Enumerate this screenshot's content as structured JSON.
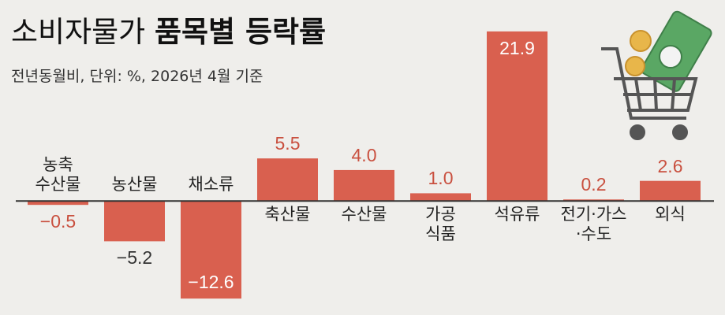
{
  "chart_data": {
    "type": "bar",
    "title": [
      "소비자물가",
      "품목별 등락률"
    ],
    "subtitle": "전년동월비, 단위: %, 2026년 4월 기준",
    "categories": [
      "농축\n수산물",
      "농산물",
      "채소류",
      "축산물",
      "수산물",
      "가공\n식품",
      "석유류",
      "전기·가스\n·수도",
      "외식"
    ],
    "values": [
      -0.5,
      -5.2,
      -12.6,
      5.5,
      4.0,
      1.0,
      21.9,
      0.2,
      2.6
    ],
    "value_labels": [
      "−0.5",
      "−5.2",
      "−12.6",
      "5.5",
      "4.0",
      "1.0",
      "21.9",
      "0.2",
      "2.6"
    ],
    "color": "#d9604f",
    "ylim": [
      -13.5,
      22.5
    ]
  }
}
